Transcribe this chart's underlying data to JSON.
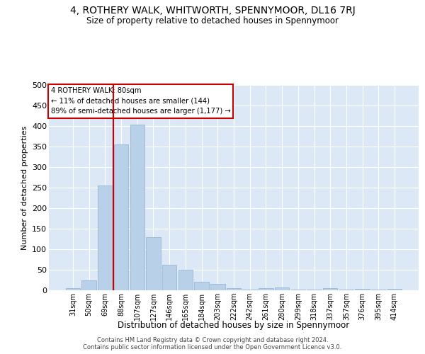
{
  "title": "4, ROTHERY WALK, WHITWORTH, SPENNYMOOR, DL16 7RJ",
  "subtitle": "Size of property relative to detached houses in Spennymoor",
  "xlabel": "Distribution of detached houses by size in Spennymoor",
  "ylabel": "Number of detached properties",
  "categories": [
    "31sqm",
    "50sqm",
    "69sqm",
    "88sqm",
    "107sqm",
    "127sqm",
    "146sqm",
    "165sqm",
    "184sqm",
    "203sqm",
    "222sqm",
    "242sqm",
    "261sqm",
    "280sqm",
    "299sqm",
    "318sqm",
    "337sqm",
    "357sqm",
    "376sqm",
    "395sqm",
    "414sqm"
  ],
  "values": [
    5,
    25,
    255,
    355,
    403,
    130,
    62,
    50,
    20,
    15,
    5,
    2,
    5,
    7,
    2,
    2,
    5,
    2,
    3,
    1,
    3
  ],
  "bar_color": "#b8d0e8",
  "bar_edge_color": "#8ab0d0",
  "background_color": "#dce8f5",
  "grid_color": "#ffffff",
  "vline_color": "#cc0000",
  "vline_x": 2.5,
  "annotation_title": "4 ROTHERY WALK: 80sqm",
  "annotation_line1": "← 11% of detached houses are smaller (144)",
  "annotation_line2": "89% of semi-detached houses are larger (1,177) →",
  "annotation_box_edge_color": "#cc0000",
  "ylim": [
    0,
    500
  ],
  "yticks": [
    0,
    50,
    100,
    150,
    200,
    250,
    300,
    350,
    400,
    450,
    500
  ],
  "footer_line1": "Contains HM Land Registry data © Crown copyright and database right 2024.",
  "footer_line2": "Contains public sector information licensed under the Open Government Licence v3.0."
}
